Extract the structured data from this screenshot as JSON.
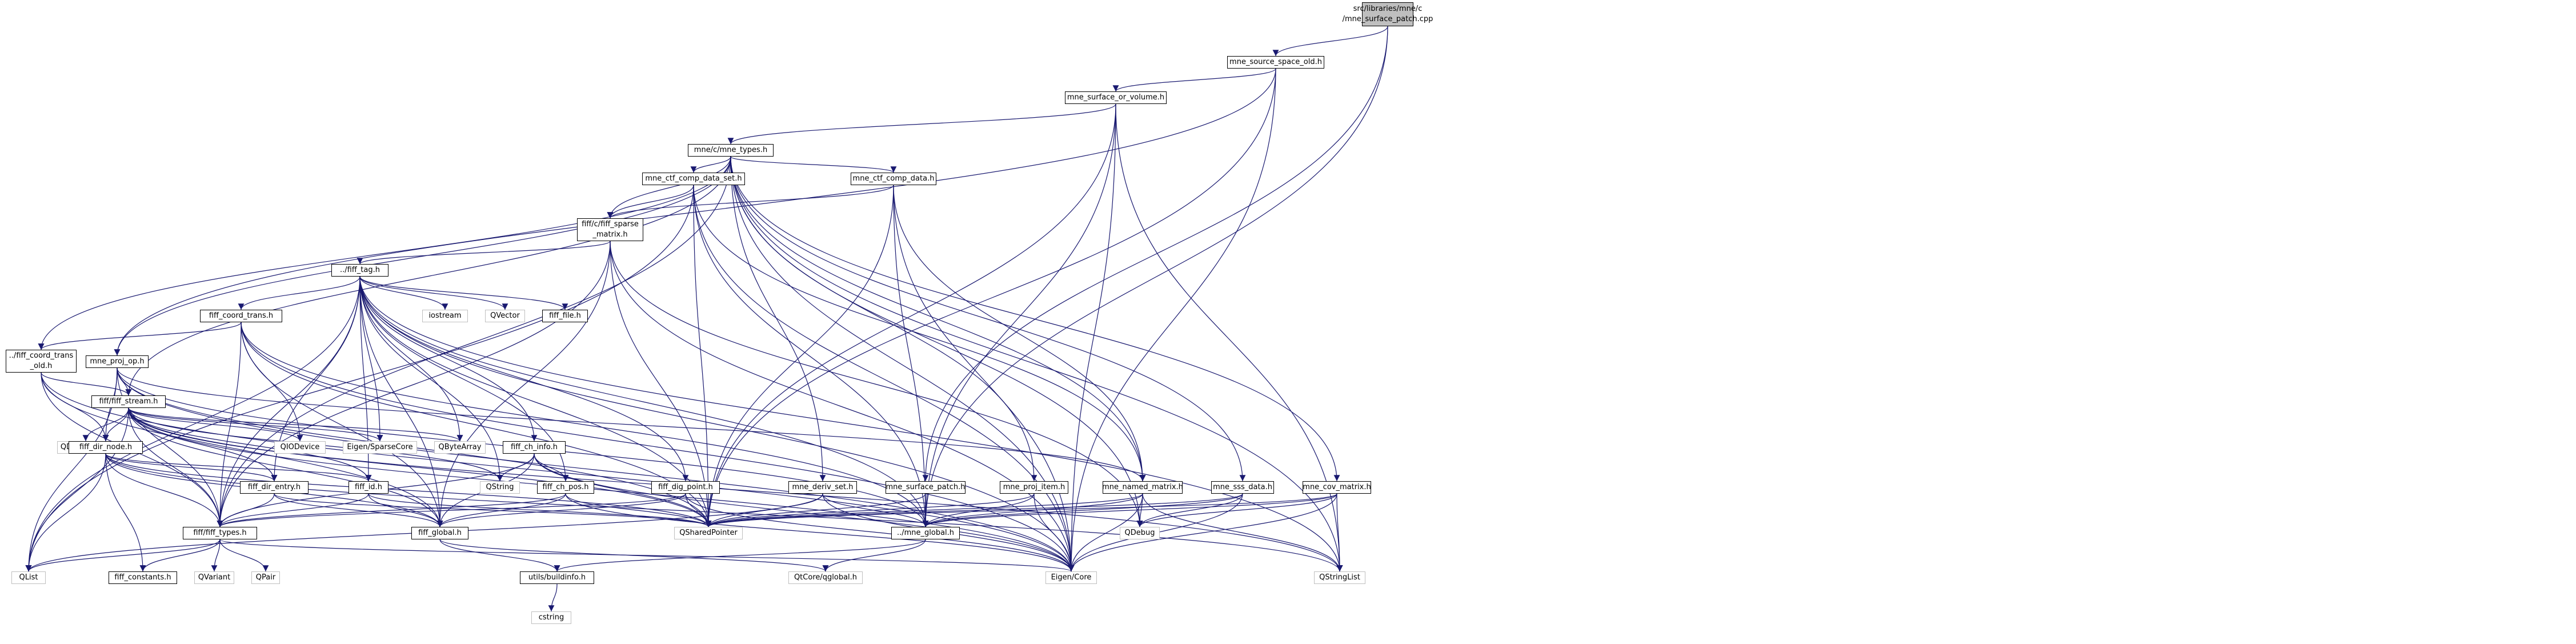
{
  "graph": {
    "nodes": [
      {
        "id": "root",
        "label": "src/libraries/mne/c\n/mne_surface_patch.cpp",
        "kind": "root"
      },
      {
        "id": "mne_source_space_old",
        "label": "mne_source_space_old.h",
        "kind": "file"
      },
      {
        "id": "mne_surface_or_volume",
        "label": "mne_surface_or_volume.h",
        "kind": "file"
      },
      {
        "id": "mne_types",
        "label": "mne/c/mne_types.h",
        "kind": "file"
      },
      {
        "id": "mne_ctf_comp_data_set",
        "label": "mne_ctf_comp_data_set.h",
        "kind": "file"
      },
      {
        "id": "mne_ctf_comp_data",
        "label": "mne_ctf_comp_data.h",
        "kind": "file"
      },
      {
        "id": "fiff_sparse_matrix",
        "label": "fiff/c/fiff_sparse\n_matrix.h",
        "kind": "file"
      },
      {
        "id": "fiff_tag",
        "label": "../fiff_tag.h",
        "kind": "file"
      },
      {
        "id": "iostream",
        "label": "iostream",
        "kind": "ext"
      },
      {
        "id": "QVector",
        "label": "QVector",
        "kind": "ext"
      },
      {
        "id": "fiff_file",
        "label": "fiff_file.h",
        "kind": "file"
      },
      {
        "id": "fiff_coord_trans",
        "label": "fiff_coord_trans.h",
        "kind": "file"
      },
      {
        "id": "fiff_coord_trans_old",
        "label": "../fiff_coord_trans\n_old.h",
        "kind": "file"
      },
      {
        "id": "mne_proj_op",
        "label": "mne_proj_op.h",
        "kind": "file"
      },
      {
        "id": "fiff_stream",
        "label": "fiff/fiff_stream.h",
        "kind": "file"
      },
      {
        "id": "QDataStream",
        "label": "QDataStream",
        "kind": "ext"
      },
      {
        "id": "QIODevice",
        "label": "QIODevice",
        "kind": "ext"
      },
      {
        "id": "EigenSparseCore",
        "label": "Eigen/SparseCore",
        "kind": "ext"
      },
      {
        "id": "QByteArray",
        "label": "QByteArray",
        "kind": "ext"
      },
      {
        "id": "fiff_dir_node",
        "label": "fiff_dir_node.h",
        "kind": "file"
      },
      {
        "id": "fiff_ch_info",
        "label": "fiff_ch_info.h",
        "kind": "file"
      },
      {
        "id": "fiff_dig_point",
        "label": "fiff_dig_point.h",
        "kind": "file"
      },
      {
        "id": "fiff_dir_entry",
        "label": "fiff_dir_entry.h",
        "kind": "file"
      },
      {
        "id": "fiff_id",
        "label": "fiff_id.h",
        "kind": "file"
      },
      {
        "id": "QString",
        "label": "QString",
        "kind": "ext"
      },
      {
        "id": "fiff_ch_pos",
        "label": "fiff_ch_pos.h",
        "kind": "file"
      },
      {
        "id": "mne_deriv_set",
        "label": "mne_deriv_set.h",
        "kind": "file"
      },
      {
        "id": "mne_surface_patch",
        "label": "mne_surface_patch.h",
        "kind": "file"
      },
      {
        "id": "mne_proj_item",
        "label": "mne_proj_item.h",
        "kind": "file"
      },
      {
        "id": "mne_named_matrix",
        "label": "mne_named_matrix.h",
        "kind": "file"
      },
      {
        "id": "mne_sss_data",
        "label": "mne_sss_data.h",
        "kind": "file"
      },
      {
        "id": "mne_cov_matrix",
        "label": "mne_cov_matrix.h",
        "kind": "file"
      },
      {
        "id": "fiff_types",
        "label": "fiff/fiff_types.h",
        "kind": "file"
      },
      {
        "id": "fiff_global",
        "label": "fiff_global.h",
        "kind": "file"
      },
      {
        "id": "QSharedPointer",
        "label": "QSharedPointer",
        "kind": "ext"
      },
      {
        "id": "mne_global",
        "label": "../mne_global.h",
        "kind": "file"
      },
      {
        "id": "QDebug",
        "label": "QDebug",
        "kind": "ext"
      },
      {
        "id": "QList",
        "label": "QList",
        "kind": "ext"
      },
      {
        "id": "fiff_constants",
        "label": "fiff_constants.h",
        "kind": "file"
      },
      {
        "id": "QVariant",
        "label": "QVariant",
        "kind": "ext"
      },
      {
        "id": "QPair",
        "label": "QPair",
        "kind": "ext"
      },
      {
        "id": "buildinfo",
        "label": "utils/buildinfo.h",
        "kind": "file"
      },
      {
        "id": "QtCoreqglobal",
        "label": "QtCore/qglobal.h",
        "kind": "ext"
      },
      {
        "id": "EigenCore",
        "label": "Eigen/Core",
        "kind": "ext"
      },
      {
        "id": "QStringList",
        "label": "QStringList",
        "kind": "ext"
      },
      {
        "id": "cstring",
        "label": "cstring",
        "kind": "ext"
      }
    ],
    "edges": [
      [
        "root",
        "mne_source_space_old"
      ],
      [
        "root",
        "mne_surface_patch"
      ],
      [
        "root",
        "mne_global"
      ],
      [
        "mne_source_space_old",
        "mne_surface_or_volume"
      ],
      [
        "mne_source_space_old",
        "mne_proj_op"
      ],
      [
        "mne_source_space_old",
        "QSharedPointer"
      ],
      [
        "mne_source_space_old",
        "EigenCore"
      ],
      [
        "mne_surface_or_volume",
        "mne_types"
      ],
      [
        "mne_surface_or_volume",
        "QSharedPointer"
      ],
      [
        "mne_surface_or_volume",
        "EigenCore"
      ],
      [
        "mne_surface_or_volume",
        "QStringList"
      ],
      [
        "mne_surface_or_volume",
        "mne_global"
      ],
      [
        "mne_types",
        "mne_ctf_comp_data_set"
      ],
      [
        "mne_types",
        "mne_ctf_comp_data"
      ],
      [
        "mne_types",
        "fiff_sparse_matrix"
      ],
      [
        "mne_types",
        "fiff_types"
      ],
      [
        "mne_types",
        "fiff_coord_trans_old"
      ],
      [
        "mne_types",
        "mne_proj_op"
      ],
      [
        "mne_types",
        "mne_deriv_set"
      ],
      [
        "mne_types",
        "mne_proj_item"
      ],
      [
        "mne_types",
        "mne_named_matrix"
      ],
      [
        "mne_types",
        "mne_sss_data"
      ],
      [
        "mne_types",
        "mne_cov_matrix"
      ],
      [
        "mne_types",
        "fiff_stream"
      ],
      [
        "mne_types",
        "QDebug"
      ],
      [
        "mne_types",
        "EigenCore"
      ],
      [
        "mne_types",
        "QStringList"
      ],
      [
        "mne_ctf_comp_data_set",
        "fiff_sparse_matrix"
      ],
      [
        "mne_ctf_comp_data_set",
        "mne_named_matrix"
      ],
      [
        "mne_ctf_comp_data_set",
        "QSharedPointer"
      ],
      [
        "mne_ctf_comp_data_set",
        "mne_global"
      ],
      [
        "mne_ctf_comp_data_set",
        "EigenCore"
      ],
      [
        "mne_ctf_comp_data_set",
        "QList"
      ],
      [
        "mne_ctf_comp_data",
        "fiff_sparse_matrix"
      ],
      [
        "mne_ctf_comp_data",
        "mne_named_matrix"
      ],
      [
        "mne_ctf_comp_data",
        "QSharedPointer"
      ],
      [
        "mne_ctf_comp_data",
        "mne_global"
      ],
      [
        "mne_ctf_comp_data",
        "EigenCore"
      ],
      [
        "fiff_sparse_matrix",
        "fiff_tag"
      ],
      [
        "fiff_sparse_matrix",
        "fiff_types"
      ],
      [
        "fiff_sparse_matrix",
        "QSharedPointer"
      ],
      [
        "fiff_sparse_matrix",
        "EigenCore"
      ],
      [
        "fiff_sparse_matrix",
        "fiff_global"
      ],
      [
        "fiff_sparse_matrix",
        "QDebug"
      ],
      [
        "fiff_tag",
        "iostream"
      ],
      [
        "fiff_tag",
        "QVector"
      ],
      [
        "fiff_tag",
        "fiff_file"
      ],
      [
        "fiff_tag",
        "fiff_coord_trans"
      ],
      [
        "fiff_tag",
        "fiff_ch_info"
      ],
      [
        "fiff_tag",
        "fiff_dig_point"
      ],
      [
        "fiff_tag",
        "fiff_id"
      ],
      [
        "fiff_tag",
        "fiff_ch_pos"
      ],
      [
        "fiff_tag",
        "fiff_types"
      ],
      [
        "fiff_tag",
        "fiff_global"
      ],
      [
        "fiff_tag",
        "QByteArray"
      ],
      [
        "fiff_tag",
        "EigenSparseCore"
      ],
      [
        "fiff_tag",
        "QSharedPointer"
      ],
      [
        "fiff_tag",
        "QList"
      ],
      [
        "fiff_tag",
        "EigenCore"
      ],
      [
        "fiff_tag",
        "QString"
      ],
      [
        "fiff_tag",
        "QStringList"
      ],
      [
        "fiff_tag",
        "fiff_dir_entry"
      ],
      [
        "fiff_tag",
        "mne_global"
      ],
      [
        "fiff_coord_trans",
        "fiff_coord_trans_old"
      ],
      [
        "fiff_coord_trans",
        "fiff_global"
      ],
      [
        "fiff_coord_trans",
        "QSharedPointer"
      ],
      [
        "fiff_coord_trans",
        "EigenCore"
      ],
      [
        "fiff_coord_trans",
        "QIODevice"
      ],
      [
        "fiff_coord_trans",
        "fiff_types"
      ],
      [
        "fiff_coord_trans",
        "mne_global"
      ],
      [
        "fiff_coord_trans_old",
        "fiff_types"
      ],
      [
        "fiff_coord_trans_old",
        "fiff_dir_node"
      ],
      [
        "fiff_coord_trans_old",
        "fiff_global"
      ],
      [
        "fiff_coord_trans_old",
        "EigenCore"
      ],
      [
        "fiff_coord_trans_old",
        "fiff_stream"
      ],
      [
        "mne_proj_op",
        "fiff_stream"
      ],
      [
        "mne_proj_op",
        "fiff_types"
      ],
      [
        "mne_proj_op",
        "mne_named_matrix"
      ],
      [
        "mne_proj_op",
        "QSharedPointer"
      ],
      [
        "mne_proj_op",
        "EigenCore"
      ],
      [
        "mne_proj_op",
        "QList"
      ],
      [
        "mne_proj_op",
        "mne_global"
      ],
      [
        "mne_proj_op",
        "fiff_dir_node"
      ],
      [
        "fiff_stream",
        "QDataStream"
      ],
      [
        "fiff_stream",
        "QIODevice"
      ],
      [
        "fiff_stream",
        "EigenSparseCore"
      ],
      [
        "fiff_stream",
        "QByteArray"
      ],
      [
        "fiff_stream",
        "fiff_dir_node"
      ],
      [
        "fiff_stream",
        "fiff_dir_entry"
      ],
      [
        "fiff_stream",
        "fiff_id"
      ],
      [
        "fiff_stream",
        "QString"
      ],
      [
        "fiff_stream",
        "fiff_types"
      ],
      [
        "fiff_stream",
        "fiff_global"
      ],
      [
        "fiff_stream",
        "QSharedPointer"
      ],
      [
        "fiff_stream",
        "QList"
      ],
      [
        "fiff_stream",
        "EigenCore"
      ],
      [
        "fiff_stream",
        "QStringList"
      ],
      [
        "fiff_dir_node",
        "fiff_dir_entry"
      ],
      [
        "fiff_dir_node",
        "fiff_id"
      ],
      [
        "fiff_dir_node",
        "fiff_types"
      ],
      [
        "fiff_dir_node",
        "fiff_global"
      ],
      [
        "fiff_dir_node",
        "QSharedPointer"
      ],
      [
        "fiff_dir_node",
        "QList"
      ],
      [
        "fiff_dir_node",
        "fiff_constants"
      ],
      [
        "fiff_dir_node",
        "QStringList"
      ],
      [
        "fiff_ch_info",
        "fiff_ch_pos"
      ],
      [
        "fiff_ch_info",
        "fiff_types"
      ],
      [
        "fiff_ch_info",
        "fiff_global"
      ],
      [
        "fiff_ch_info",
        "QSharedPointer"
      ],
      [
        "fiff_ch_info",
        "QString"
      ],
      [
        "fiff_ch_info",
        "EigenCore"
      ],
      [
        "fiff_dig_point",
        "fiff_types"
      ],
      [
        "fiff_dig_point",
        "fiff_global"
      ],
      [
        "fiff_dig_point",
        "QSharedPointer"
      ],
      [
        "fiff_dig_point",
        "EigenCore"
      ],
      [
        "fiff_dir_entry",
        "fiff_types"
      ],
      [
        "fiff_dir_entry",
        "fiff_global"
      ],
      [
        "fiff_dir_entry",
        "QSharedPointer"
      ],
      [
        "fiff_id",
        "fiff_types"
      ],
      [
        "fiff_id",
        "fiff_global"
      ],
      [
        "fiff_id",
        "QSharedPointer"
      ],
      [
        "fiff_ch_pos",
        "fiff_types"
      ],
      [
        "fiff_ch_pos",
        "fiff_global"
      ],
      [
        "fiff_ch_pos",
        "QSharedPointer"
      ],
      [
        "fiff_ch_pos",
        "EigenCore"
      ],
      [
        "mne_deriv_set",
        "QSharedPointer"
      ],
      [
        "mne_deriv_set",
        "mne_global"
      ],
      [
        "mne_deriv_set",
        "EigenCore"
      ],
      [
        "mne_deriv_set",
        "QList"
      ],
      [
        "mne_surface_patch",
        "QSharedPointer"
      ],
      [
        "mne_surface_patch",
        "mne_global"
      ],
      [
        "mne_proj_item",
        "QSharedPointer"
      ],
      [
        "mne_proj_item",
        "mne_global"
      ],
      [
        "mne_proj_item",
        "EigenCore"
      ],
      [
        "mne_named_matrix",
        "QSharedPointer"
      ],
      [
        "mne_named_matrix",
        "mne_global"
      ],
      [
        "mne_named_matrix",
        "EigenCore"
      ],
      [
        "mne_named_matrix",
        "QDebug"
      ],
      [
        "mne_named_matrix",
        "QStringList"
      ],
      [
        "mne_sss_data",
        "QSharedPointer"
      ],
      [
        "mne_sss_data",
        "mne_global"
      ],
      [
        "mne_sss_data",
        "EigenCore"
      ],
      [
        "mne_sss_data",
        "QDebug"
      ],
      [
        "mne_cov_matrix",
        "QSharedPointer"
      ],
      [
        "mne_cov_matrix",
        "mne_global"
      ],
      [
        "mne_cov_matrix",
        "EigenCore"
      ],
      [
        "mne_cov_matrix",
        "QStringList"
      ],
      [
        "mne_cov_matrix",
        "QDebug"
      ],
      [
        "fiff_types",
        "fiff_constants"
      ],
      [
        "fiff_types",
        "QVariant"
      ],
      [
        "fiff_types",
        "QPair"
      ],
      [
        "fiff_types",
        "EigenCore"
      ],
      [
        "fiff_types",
        "QList"
      ],
      [
        "fiff_global",
        "buildinfo"
      ],
      [
        "fiff_global",
        "QtCoreqglobal"
      ],
      [
        "mne_global",
        "buildinfo"
      ],
      [
        "mne_global",
        "QtCoreqglobal"
      ],
      [
        "buildinfo",
        "cstring"
      ]
    ]
  }
}
